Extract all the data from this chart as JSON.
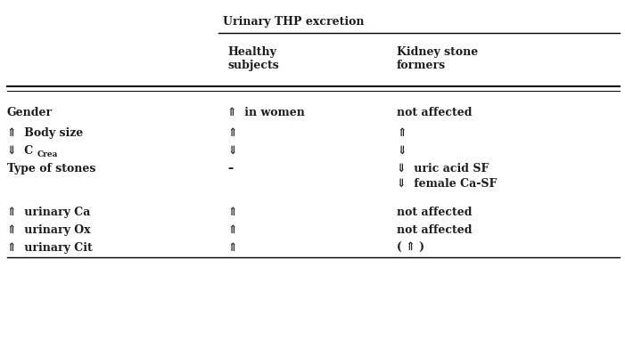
{
  "title_group": "Urinary THP excretion",
  "col_headers_0": "Healthy\nsubjects",
  "col_headers_1": "Kidney stone\nformers",
  "rows": [
    {
      "label": "⇑  Body size",
      "label_special": false,
      "col1": "⇑",
      "col2": "⇑"
    },
    {
      "label": "⇓  C",
      "label_special": true,
      "col1": "⇓",
      "col2": "⇓"
    },
    {
      "label": "Type of stones",
      "label_special": false,
      "col1": "–",
      "col2_line1": "⇓  uric acid SF",
      "col2_line2": "⇓  female Ca-SF"
    }
  ],
  "rows_bottom": [
    {
      "label": "⇑  urinary Ca",
      "col1": "⇑",
      "col2": "not affected"
    },
    {
      "label": "⇑  urinary Ox",
      "col1": "⇑",
      "col2": "not affected"
    },
    {
      "label": "⇑  urinary Cit",
      "col1": "⇑",
      "col2": "( ⇑ )"
    }
  ],
  "text_color": "#1c1c1c",
  "font_size": 9.0,
  "font_weight": "bold",
  "font_family": "DejaVu Serif"
}
